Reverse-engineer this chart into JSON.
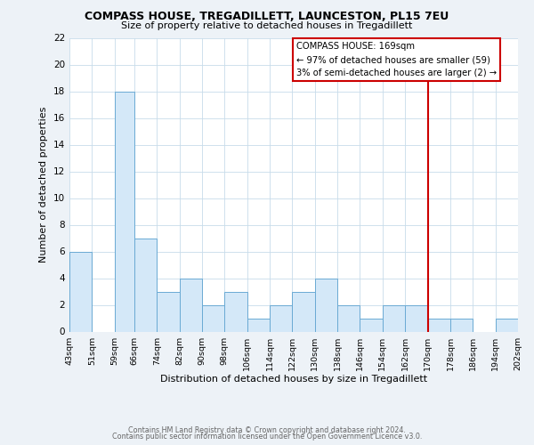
{
  "title": "COMPASS HOUSE, TREGADILLETT, LAUNCESTON, PL15 7EU",
  "subtitle": "Size of property relative to detached houses in Tregadillett",
  "xlabel": "Distribution of detached houses by size in Tregadillett",
  "ylabel": "Number of detached properties",
  "bins": [
    43,
    51,
    59,
    66,
    74,
    82,
    90,
    98,
    106,
    114,
    122,
    130,
    138,
    146,
    154,
    162,
    170,
    178,
    186,
    194,
    202
  ],
  "counts": [
    6,
    0,
    18,
    7,
    3,
    4,
    2,
    3,
    1,
    2,
    3,
    4,
    2,
    1,
    2,
    2,
    1,
    1,
    0,
    1
  ],
  "bar_color": "#d4e8f8",
  "bar_edge_color": "#6aaad4",
  "ylim_max": 22,
  "yticks": [
    0,
    2,
    4,
    6,
    8,
    10,
    12,
    14,
    16,
    18,
    20,
    22
  ],
  "vline_x": 170,
  "vline_color": "#cc0000",
  "annotation_title": "COMPASS HOUSE: 169sqm",
  "annotation_line1": "← 97% of detached houses are smaller (59)",
  "annotation_line2": "3% of semi-detached houses are larger (2) →",
  "annotation_box_edgecolor": "#cc0000",
  "footer_line1": "Contains HM Land Registry data © Crown copyright and database right 2024.",
  "footer_line2": "Contains public sector information licensed under the Open Government Licence v3.0.",
  "fig_bg_color": "#edf2f7",
  "plot_bg_color": "#ffffff",
  "grid_color": "#c8dcea"
}
